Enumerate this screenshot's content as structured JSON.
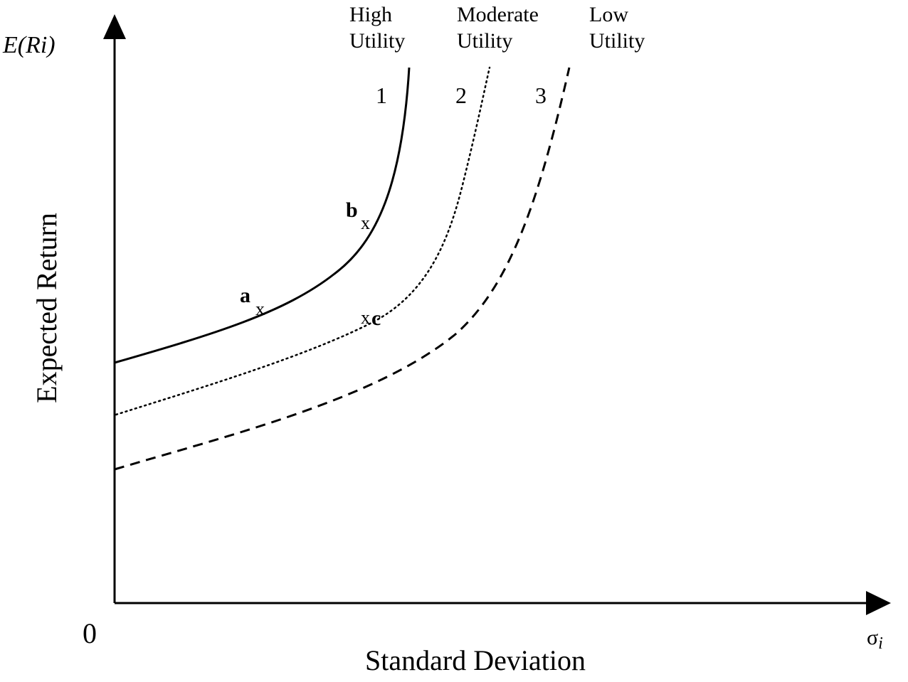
{
  "axes": {
    "y_axis_symbol": "E(Ri)",
    "y_axis_label": "Expected Return",
    "x_axis_label": "Standard Deviation",
    "x_axis_symbol_base": "σ",
    "x_axis_symbol_sub": "i",
    "origin_label": "0"
  },
  "curves": [
    {
      "number": "1",
      "title_line1": "High",
      "title_line2": "Utility",
      "style": "solid"
    },
    {
      "number": "2",
      "title_line1": "Moderate",
      "title_line2": "Utility",
      "style": "dotted"
    },
    {
      "number": "3",
      "title_line1": "Low",
      "title_line2": "Utility",
      "style": "dashed"
    }
  ],
  "points": [
    {
      "label": "a",
      "marker": "x"
    },
    {
      "label": "b",
      "marker": "x"
    },
    {
      "label": "c",
      "marker": "x"
    }
  ],
  "colors": {
    "ink": "#000000",
    "background": "#ffffff"
  }
}
